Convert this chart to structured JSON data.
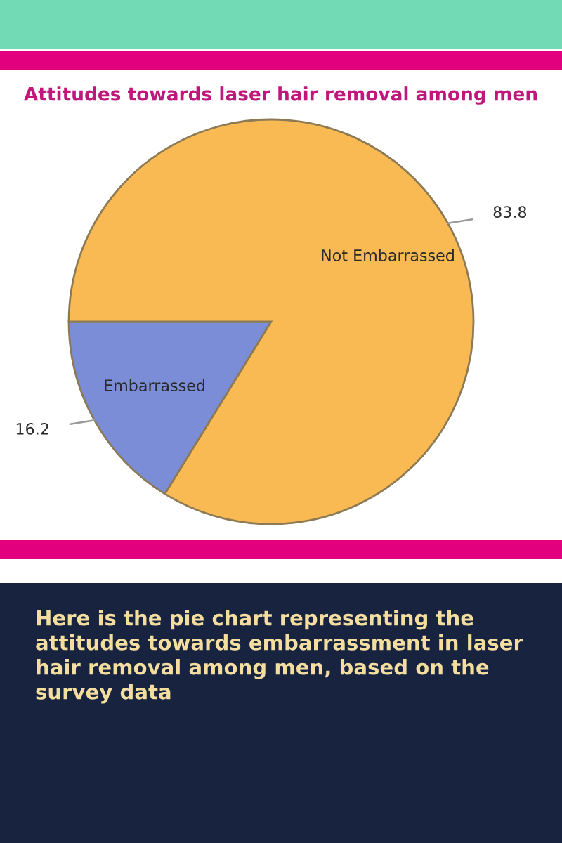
{
  "chart_data": {
    "type": "pie",
    "title": "Attitudes towards laser hair removal among men",
    "categories": [
      "Embarrassed",
      "Not Embarrassed"
    ],
    "values": [
      16.2,
      83.8
    ],
    "colors": [
      "#7b8dd6",
      "#f9b953"
    ],
    "data_labels": true,
    "annotations": [
      "Here is the pie chart representing the attitudes towards embarrassment in laser hair removal among men, based on the survey data"
    ]
  }
}
